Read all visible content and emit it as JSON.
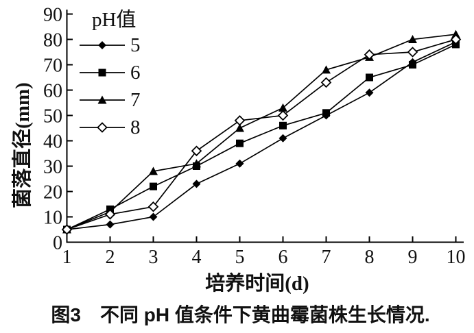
{
  "figure": {
    "y_axis_label": "菌落直径(mm)",
    "x_axis_label": "培养时间(d)",
    "caption": "图3　不同 pH 值条件下黄曲霉菌株生长情况."
  },
  "chart_data": {
    "type": "line",
    "title": "",
    "xlabel": "培养时间(d)",
    "ylabel": "菌落直径(mm)",
    "legend_title": "pH值",
    "legend_position": "upper-left-inside",
    "grid": false,
    "xlim": [
      1,
      10
    ],
    "ylim": [
      0,
      90
    ],
    "x_ticks": [
      1,
      2,
      3,
      4,
      5,
      6,
      7,
      8,
      9,
      10
    ],
    "y_ticks": [
      0,
      10,
      20,
      30,
      40,
      50,
      60,
      70,
      80,
      90
    ],
    "x": [
      1,
      2,
      3,
      4,
      5,
      6,
      7,
      8,
      9,
      10
    ],
    "series": [
      {
        "name": "5",
        "marker": "filled-diamond",
        "color": "#000000",
        "values": [
          5,
          7,
          10,
          23,
          31,
          41,
          50,
          59,
          71,
          79
        ]
      },
      {
        "name": "6",
        "marker": "filled-square",
        "color": "#000000",
        "values": [
          5,
          13,
          22,
          30,
          39,
          46,
          51,
          65,
          70,
          78
        ]
      },
      {
        "name": "7",
        "marker": "filled-triangle",
        "color": "#000000",
        "values": [
          5,
          12,
          28,
          31,
          45,
          53,
          68,
          73,
          80,
          82
        ]
      },
      {
        "name": "8",
        "marker": "open-diamond",
        "color": "#000000",
        "values": [
          5,
          11,
          14,
          36,
          48,
          50,
          63,
          74,
          75,
          80
        ]
      }
    ],
    "colors": {
      "line": "#000000",
      "background": "#ffffff",
      "text": "#111111"
    }
  }
}
